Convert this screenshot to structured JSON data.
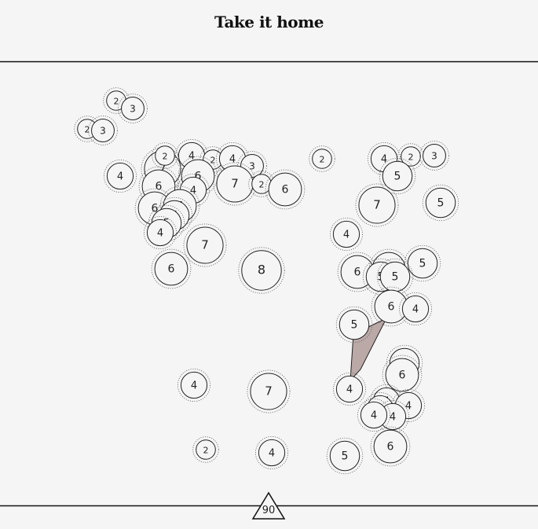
{
  "game": {
    "title": "Take it home",
    "counter": "90",
    "colors": {
      "background": "#f6f5f5",
      "line": "#111111",
      "shape_fill": "#bba9a7"
    }
  },
  "circles": [
    {
      "v": "2"
    },
    {
      "v": "3"
    },
    {
      "v": "2"
    },
    {
      "v": "3"
    },
    {
      "v": "4"
    },
    {
      "v": "7"
    },
    {
      "v": "2"
    },
    {
      "v": "4"
    },
    {
      "v": "2"
    },
    {
      "v": "4"
    },
    {
      "v": "3"
    },
    {
      "v": "6"
    },
    {
      "v": "6"
    },
    {
      "v": "7"
    },
    {
      "v": "4"
    },
    {
      "v": "2"
    },
    {
      "v": "6"
    },
    {
      "v": "6"
    },
    {
      "v": "6"
    },
    {
      "v": "5"
    },
    {
      "v": "5"
    },
    {
      "v": "4"
    },
    {
      "v": "7"
    },
    {
      "v": "6"
    },
    {
      "v": "8"
    },
    {
      "v": "2"
    },
    {
      "v": "4"
    },
    {
      "v": "2"
    },
    {
      "v": "3"
    },
    {
      "v": "5"
    },
    {
      "v": "7"
    },
    {
      "v": "5"
    },
    {
      "v": "4"
    },
    {
      "v": "5"
    },
    {
      "v": "6"
    },
    {
      "v": "6"
    },
    {
      "v": "5"
    },
    {
      "v": "5"
    },
    {
      "v": "6"
    },
    {
      "v": "4"
    },
    {
      "v": "5"
    },
    {
      "v": "5"
    },
    {
      "v": "6"
    },
    {
      "v": "4"
    },
    {
      "v": "4"
    },
    {
      "v": "4"
    },
    {
      "v": "4"
    },
    {
      "v": "4"
    },
    {
      "v": "4"
    },
    {
      "v": "6"
    },
    {
      "v": "4"
    },
    {
      "v": "7"
    },
    {
      "v": "2"
    },
    {
      "v": "4"
    },
    {
      "v": "5"
    }
  ]
}
